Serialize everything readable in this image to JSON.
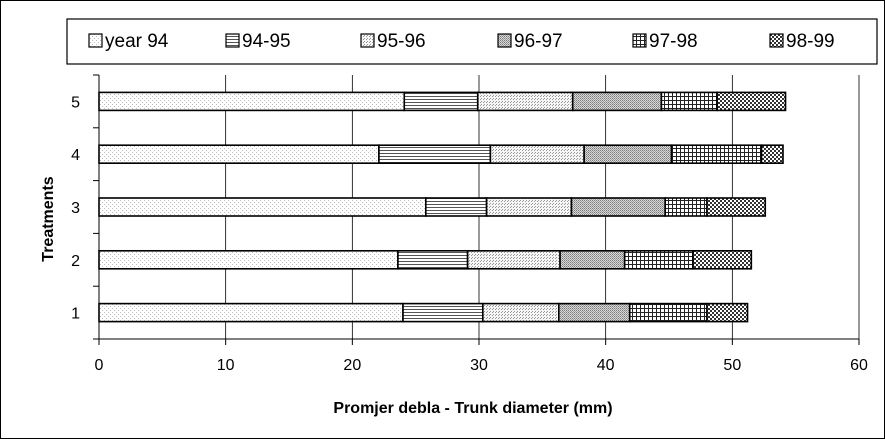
{
  "chart_data": {
    "type": "bar",
    "orientation": "horizontal",
    "stacked": true,
    "title": "",
    "xlabel": "Promjer debla - Trunk diameter (mm)",
    "ylabel": "Treatments",
    "xlim": [
      0,
      60
    ],
    "x_ticks": [
      "0",
      "10",
      "20",
      "30",
      "40",
      "50",
      "60"
    ],
    "categories": [
      "1",
      "2",
      "3",
      "4",
      "5"
    ],
    "grid": "vertical major gridlines",
    "legend_position": "top",
    "series": [
      {
        "name": "year 94",
        "pattern": "fine-dots",
        "values": [
          24.0,
          23.6,
          25.8,
          22.1,
          24.1
        ]
      },
      {
        "name": "94-95",
        "pattern": "horizontal-lines",
        "values": [
          6.3,
          5.5,
          4.8,
          8.8,
          5.8
        ]
      },
      {
        "name": "95-96",
        "pattern": "light-dots",
        "values": [
          6.0,
          7.3,
          6.7,
          7.4,
          7.5
        ]
      },
      {
        "name": "96-97",
        "pattern": "dense-dots",
        "values": [
          5.6,
          5.1,
          7.4,
          6.9,
          7.0
        ]
      },
      {
        "name": "97-98",
        "pattern": "grid",
        "values": [
          6.1,
          5.4,
          3.3,
          7.1,
          4.4
        ]
      },
      {
        "name": "98-99",
        "pattern": "checker",
        "values": [
          3.2,
          4.6,
          4.6,
          1.7,
          5.4
        ]
      }
    ]
  }
}
